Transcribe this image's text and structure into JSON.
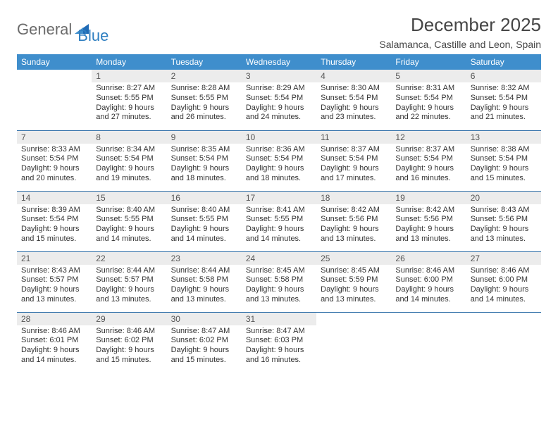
{
  "brand": {
    "word1": "General",
    "word2": "Blue"
  },
  "title": "December 2025",
  "location": "Salamanca, Castille and Leon, Spain",
  "colors": {
    "header_bg": "#3f8ecc",
    "header_text": "#ffffff",
    "daynum_bg": "#ececec",
    "week_border": "#2f6fa8",
    "body_text": "#333333",
    "logo_gray": "#6b6b6b",
    "logo_blue": "#2f7fc1"
  },
  "weekdays": [
    "Sunday",
    "Monday",
    "Tuesday",
    "Wednesday",
    "Thursday",
    "Friday",
    "Saturday"
  ],
  "weeks": [
    [
      null,
      {
        "n": "1",
        "sr": "Sunrise: 8:27 AM",
        "ss": "Sunset: 5:55 PM",
        "dl": "Daylight: 9 hours and 27 minutes."
      },
      {
        "n": "2",
        "sr": "Sunrise: 8:28 AM",
        "ss": "Sunset: 5:55 PM",
        "dl": "Daylight: 9 hours and 26 minutes."
      },
      {
        "n": "3",
        "sr": "Sunrise: 8:29 AM",
        "ss": "Sunset: 5:54 PM",
        "dl": "Daylight: 9 hours and 24 minutes."
      },
      {
        "n": "4",
        "sr": "Sunrise: 8:30 AM",
        "ss": "Sunset: 5:54 PM",
        "dl": "Daylight: 9 hours and 23 minutes."
      },
      {
        "n": "5",
        "sr": "Sunrise: 8:31 AM",
        "ss": "Sunset: 5:54 PM",
        "dl": "Daylight: 9 hours and 22 minutes."
      },
      {
        "n": "6",
        "sr": "Sunrise: 8:32 AM",
        "ss": "Sunset: 5:54 PM",
        "dl": "Daylight: 9 hours and 21 minutes."
      }
    ],
    [
      {
        "n": "7",
        "sr": "Sunrise: 8:33 AM",
        "ss": "Sunset: 5:54 PM",
        "dl": "Daylight: 9 hours and 20 minutes."
      },
      {
        "n": "8",
        "sr": "Sunrise: 8:34 AM",
        "ss": "Sunset: 5:54 PM",
        "dl": "Daylight: 9 hours and 19 minutes."
      },
      {
        "n": "9",
        "sr": "Sunrise: 8:35 AM",
        "ss": "Sunset: 5:54 PM",
        "dl": "Daylight: 9 hours and 18 minutes."
      },
      {
        "n": "10",
        "sr": "Sunrise: 8:36 AM",
        "ss": "Sunset: 5:54 PM",
        "dl": "Daylight: 9 hours and 18 minutes."
      },
      {
        "n": "11",
        "sr": "Sunrise: 8:37 AM",
        "ss": "Sunset: 5:54 PM",
        "dl": "Daylight: 9 hours and 17 minutes."
      },
      {
        "n": "12",
        "sr": "Sunrise: 8:37 AM",
        "ss": "Sunset: 5:54 PM",
        "dl": "Daylight: 9 hours and 16 minutes."
      },
      {
        "n": "13",
        "sr": "Sunrise: 8:38 AM",
        "ss": "Sunset: 5:54 PM",
        "dl": "Daylight: 9 hours and 15 minutes."
      }
    ],
    [
      {
        "n": "14",
        "sr": "Sunrise: 8:39 AM",
        "ss": "Sunset: 5:54 PM",
        "dl": "Daylight: 9 hours and 15 minutes."
      },
      {
        "n": "15",
        "sr": "Sunrise: 8:40 AM",
        "ss": "Sunset: 5:55 PM",
        "dl": "Daylight: 9 hours and 14 minutes."
      },
      {
        "n": "16",
        "sr": "Sunrise: 8:40 AM",
        "ss": "Sunset: 5:55 PM",
        "dl": "Daylight: 9 hours and 14 minutes."
      },
      {
        "n": "17",
        "sr": "Sunrise: 8:41 AM",
        "ss": "Sunset: 5:55 PM",
        "dl": "Daylight: 9 hours and 14 minutes."
      },
      {
        "n": "18",
        "sr": "Sunrise: 8:42 AM",
        "ss": "Sunset: 5:56 PM",
        "dl": "Daylight: 9 hours and 13 minutes."
      },
      {
        "n": "19",
        "sr": "Sunrise: 8:42 AM",
        "ss": "Sunset: 5:56 PM",
        "dl": "Daylight: 9 hours and 13 minutes."
      },
      {
        "n": "20",
        "sr": "Sunrise: 8:43 AM",
        "ss": "Sunset: 5:56 PM",
        "dl": "Daylight: 9 hours and 13 minutes."
      }
    ],
    [
      {
        "n": "21",
        "sr": "Sunrise: 8:43 AM",
        "ss": "Sunset: 5:57 PM",
        "dl": "Daylight: 9 hours and 13 minutes."
      },
      {
        "n": "22",
        "sr": "Sunrise: 8:44 AM",
        "ss": "Sunset: 5:57 PM",
        "dl": "Daylight: 9 hours and 13 minutes."
      },
      {
        "n": "23",
        "sr": "Sunrise: 8:44 AM",
        "ss": "Sunset: 5:58 PM",
        "dl": "Daylight: 9 hours and 13 minutes."
      },
      {
        "n": "24",
        "sr": "Sunrise: 8:45 AM",
        "ss": "Sunset: 5:58 PM",
        "dl": "Daylight: 9 hours and 13 minutes."
      },
      {
        "n": "25",
        "sr": "Sunrise: 8:45 AM",
        "ss": "Sunset: 5:59 PM",
        "dl": "Daylight: 9 hours and 13 minutes."
      },
      {
        "n": "26",
        "sr": "Sunrise: 8:46 AM",
        "ss": "Sunset: 6:00 PM",
        "dl": "Daylight: 9 hours and 14 minutes."
      },
      {
        "n": "27",
        "sr": "Sunrise: 8:46 AM",
        "ss": "Sunset: 6:00 PM",
        "dl": "Daylight: 9 hours and 14 minutes."
      }
    ],
    [
      {
        "n": "28",
        "sr": "Sunrise: 8:46 AM",
        "ss": "Sunset: 6:01 PM",
        "dl": "Daylight: 9 hours and 14 minutes."
      },
      {
        "n": "29",
        "sr": "Sunrise: 8:46 AM",
        "ss": "Sunset: 6:02 PM",
        "dl": "Daylight: 9 hours and 15 minutes."
      },
      {
        "n": "30",
        "sr": "Sunrise: 8:47 AM",
        "ss": "Sunset: 6:02 PM",
        "dl": "Daylight: 9 hours and 15 minutes."
      },
      {
        "n": "31",
        "sr": "Sunrise: 8:47 AM",
        "ss": "Sunset: 6:03 PM",
        "dl": "Daylight: 9 hours and 16 minutes."
      },
      null,
      null,
      null
    ]
  ]
}
